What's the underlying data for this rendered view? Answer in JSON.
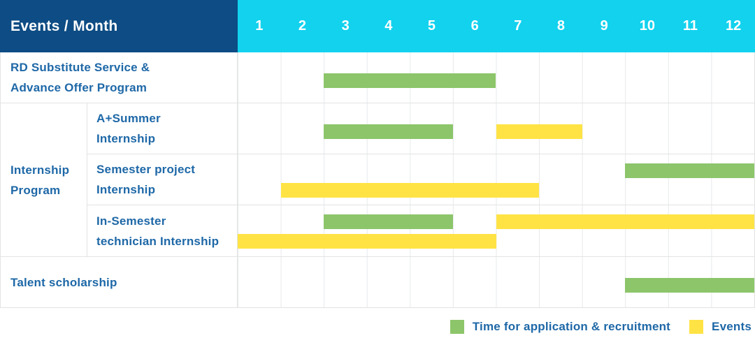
{
  "title_cell": "Events / Month",
  "months": [
    "1",
    "2",
    "3",
    "4",
    "5",
    "6",
    "7",
    "8",
    "9",
    "10",
    "11",
    "12"
  ],
  "colors": {
    "header_bg": "#0d4c84",
    "months_bg": "#12d2ee",
    "bar_green": "#8cc56a",
    "bar_yellow": "#ffe345",
    "label_blue": "#1e68a7",
    "grid_line": "#e7e9eb",
    "row_border": "#e3e3e3"
  },
  "legend": {
    "items": [
      {
        "label": "Time for application & recruitment",
        "series": "application",
        "color": "#8cc56a"
      },
      {
        "label": "Events",
        "series": "event",
        "color": "#ffe345"
      }
    ]
  },
  "chart_data": {
    "type": "bar",
    "subtype": "gantt-schedule",
    "title": "Events / Month",
    "x_axis": {
      "label": "Month",
      "categories": [
        "1",
        "2",
        "3",
        "4",
        "5",
        "6",
        "7",
        "8",
        "9",
        "10",
        "11",
        "12"
      ],
      "range": [
        1,
        12
      ]
    },
    "legend_position": "bottom-right",
    "grid": true,
    "series_legend": [
      {
        "name": "Time for application & recruitment",
        "color": "#8cc56a",
        "key": "application"
      },
      {
        "name": "Events",
        "color": "#ffe345",
        "key": "event"
      }
    ],
    "rows": [
      {
        "group": "",
        "label": "RD Substitute Service & Advance Offer Program",
        "label_lines": [
          "RD Substitute Service &",
          "Advance Offer Program"
        ],
        "bars": [
          {
            "series": "application",
            "start_month": 3,
            "end_month": 6,
            "lane": "single"
          }
        ]
      },
      {
        "group": "Internship Program",
        "label": "A+Summer Internship",
        "label_lines": [
          "A+Summer",
          "Internship"
        ],
        "bars": [
          {
            "series": "application",
            "start_month": 3,
            "end_month": 5,
            "lane": "single"
          },
          {
            "series": "event",
            "start_month": 7,
            "end_month": 8,
            "lane": "single"
          }
        ]
      },
      {
        "group": "Internship Program",
        "label": "Semester project Internship",
        "label_lines": [
          "Semester project",
          "Internship"
        ],
        "bars": [
          {
            "series": "application",
            "start_month": 10,
            "end_month": 12,
            "lane": "top"
          },
          {
            "series": "event",
            "start_month": 2,
            "end_month": 7,
            "lane": "bottom"
          }
        ]
      },
      {
        "group": "Internship Program",
        "label": "In-Semester technician Internship",
        "label_lines": [
          "In-Semester",
          "technician Internship"
        ],
        "bars": [
          {
            "series": "application",
            "start_month": 3,
            "end_month": 5,
            "lane": "top"
          },
          {
            "series": "event",
            "start_month": 7,
            "end_month": 12,
            "lane": "top"
          },
          {
            "series": "event",
            "start_month": 1,
            "end_month": 6,
            "lane": "bottom"
          }
        ]
      },
      {
        "group": "",
        "label": "Talent scholarship",
        "label_lines": [
          "Talent scholarship"
        ],
        "bars": [
          {
            "series": "application",
            "start_month": 10,
            "end_month": 12,
            "lane": "single"
          }
        ]
      }
    ],
    "group_labels": [
      {
        "label": "Internship Program",
        "label_lines": [
          "Internship",
          "Program"
        ],
        "spans_rows": [
          "A+Summer Internship",
          "Semester project Internship",
          "In-Semester technician Internship"
        ]
      }
    ]
  }
}
